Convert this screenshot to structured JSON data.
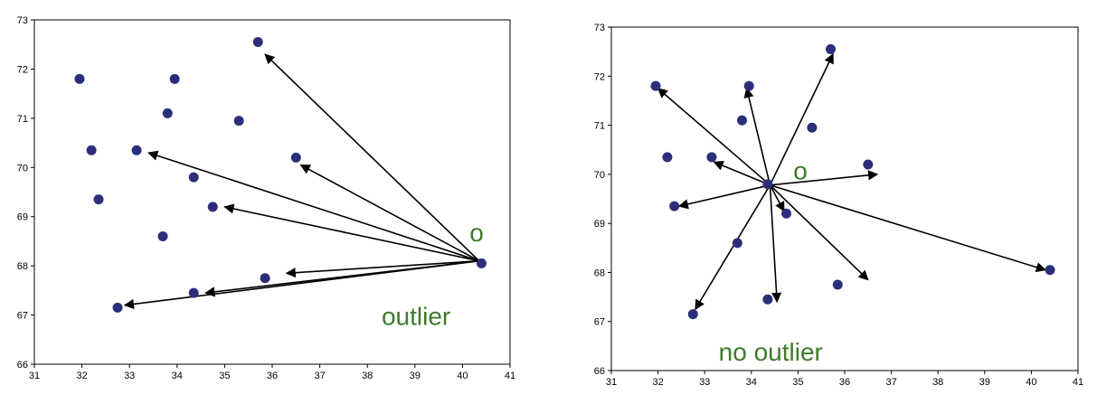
{
  "chart_data": [
    {
      "type": "scatter",
      "title": "",
      "xlabel": "",
      "ylabel": "",
      "xlim": [
        31,
        41
      ],
      "ylim": [
        66,
        73
      ],
      "xticks": [
        31,
        32,
        33,
        34,
        35,
        36,
        37,
        38,
        39,
        40,
        41
      ],
      "yticks": [
        66,
        67,
        68,
        69,
        70,
        71,
        72,
        73
      ],
      "grid": false,
      "legend": "none",
      "point_color": "#2b2f7a",
      "arrow_color": "#000000",
      "annotation_color": "#3f7a2a",
      "points": [
        {
          "x": 31.95,
          "y": 71.8
        },
        {
          "x": 32.2,
          "y": 70.35
        },
        {
          "x": 32.35,
          "y": 69.35
        },
        {
          "x": 32.75,
          "y": 67.15
        },
        {
          "x": 33.15,
          "y": 70.35
        },
        {
          "x": 33.7,
          "y": 68.6
        },
        {
          "x": 33.8,
          "y": 71.1
        },
        {
          "x": 33.95,
          "y": 71.8
        },
        {
          "x": 34.35,
          "y": 69.8
        },
        {
          "x": 34.35,
          "y": 67.45
        },
        {
          "x": 34.75,
          "y": 69.2
        },
        {
          "x": 35.3,
          "y": 70.95
        },
        {
          "x": 35.7,
          "y": 72.55
        },
        {
          "x": 35.85,
          "y": 67.75
        },
        {
          "x": 36.5,
          "y": 70.2
        },
        {
          "x": 40.4,
          "y": 68.05
        }
      ],
      "arrows": [
        {
          "x0": 40.35,
          "y0": 68.1,
          "x1": 35.85,
          "y1": 72.3
        },
        {
          "x0": 40.35,
          "y0": 68.1,
          "x1": 33.4,
          "y1": 70.3
        },
        {
          "x0": 40.35,
          "y0": 68.1,
          "x1": 36.6,
          "y1": 70.05
        },
        {
          "x0": 40.35,
          "y0": 68.1,
          "x1": 35.0,
          "y1": 69.2
        },
        {
          "x0": 40.35,
          "y0": 68.1,
          "x1": 36.3,
          "y1": 67.85
        },
        {
          "x0": 40.35,
          "y0": 68.1,
          "x1": 34.6,
          "y1": 67.45
        },
        {
          "x0": 40.35,
          "y0": 68.1,
          "x1": 32.9,
          "y1": 67.2
        }
      ],
      "annotations": [
        {
          "text": "o",
          "x": 40.15,
          "y": 68.5,
          "size": "large"
        },
        {
          "text": "outlier",
          "x": 38.3,
          "y": 66.8,
          "size": "large"
        }
      ]
    },
    {
      "type": "scatter",
      "title": "",
      "xlabel": "",
      "ylabel": "",
      "xlim": [
        31,
        41
      ],
      "ylim": [
        66,
        73
      ],
      "xticks": [
        31,
        32,
        33,
        34,
        35,
        36,
        37,
        38,
        39,
        40,
        41
      ],
      "yticks": [
        66,
        67,
        68,
        69,
        70,
        71,
        72,
        73
      ],
      "grid": false,
      "legend": "none",
      "point_color": "#2b2f7a",
      "arrow_color": "#000000",
      "annotation_color": "#3f7a2a",
      "points": [
        {
          "x": 31.95,
          "y": 71.8
        },
        {
          "x": 32.2,
          "y": 70.35
        },
        {
          "x": 32.35,
          "y": 69.35
        },
        {
          "x": 32.75,
          "y": 67.15
        },
        {
          "x": 33.15,
          "y": 70.35
        },
        {
          "x": 33.7,
          "y": 68.6
        },
        {
          "x": 33.8,
          "y": 71.1
        },
        {
          "x": 33.95,
          "y": 71.8
        },
        {
          "x": 34.35,
          "y": 69.8
        },
        {
          "x": 34.35,
          "y": 67.45
        },
        {
          "x": 34.75,
          "y": 69.2
        },
        {
          "x": 35.3,
          "y": 70.95
        },
        {
          "x": 35.7,
          "y": 72.55
        },
        {
          "x": 35.85,
          "y": 67.75
        },
        {
          "x": 36.5,
          "y": 70.2
        },
        {
          "x": 40.4,
          "y": 68.05
        }
      ],
      "arrows": [
        {
          "x0": 34.4,
          "y0": 69.78,
          "x1": 32.0,
          "y1": 71.75
        },
        {
          "x0": 34.4,
          "y0": 69.78,
          "x1": 33.9,
          "y1": 71.75
        },
        {
          "x0": 34.4,
          "y0": 69.78,
          "x1": 35.75,
          "y1": 72.45
        },
        {
          "x0": 34.4,
          "y0": 69.78,
          "x1": 33.2,
          "y1": 70.25
        },
        {
          "x0": 34.4,
          "y0": 69.78,
          "x1": 36.7,
          "y1": 70.0
        },
        {
          "x0": 34.4,
          "y0": 69.78,
          "x1": 32.45,
          "y1": 69.35
        },
        {
          "x0": 34.4,
          "y0": 69.78,
          "x1": 34.7,
          "y1": 69.25
        },
        {
          "x0": 34.4,
          "y0": 69.78,
          "x1": 32.8,
          "y1": 67.25
        },
        {
          "x0": 34.4,
          "y0": 69.78,
          "x1": 34.55,
          "y1": 67.4
        },
        {
          "x0": 34.4,
          "y0": 69.78,
          "x1": 36.5,
          "y1": 67.85
        },
        {
          "x0": 34.4,
          "y0": 69.78,
          "x1": 40.3,
          "y1": 68.05
        }
      ],
      "annotations": [
        {
          "text": "o",
          "x": 34.9,
          "y": 69.9,
          "size": "large"
        },
        {
          "text": "no outlier",
          "x": 33.3,
          "y": 66.2,
          "size": "large"
        }
      ]
    }
  ]
}
